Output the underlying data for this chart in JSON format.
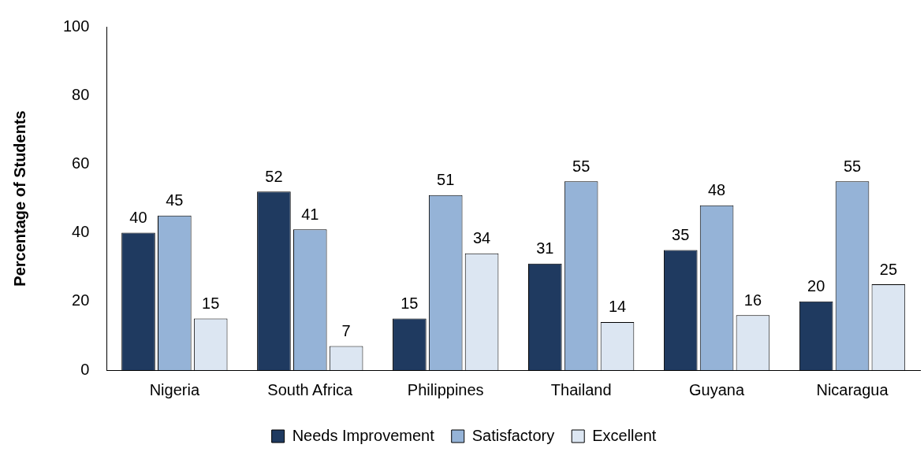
{
  "chart_data": {
    "type": "bar",
    "ylabel": "Percentage of Students",
    "categories": [
      "Nigeria",
      "South Africa",
      "Philippines",
      "Thailand",
      "Guyana",
      "Nicaragua"
    ],
    "series": [
      {
        "name": "Needs Improvement",
        "color": "#1f3a60",
        "values": [
          40,
          52,
          15,
          31,
          35,
          20
        ]
      },
      {
        "name": "Satisfactory",
        "color": "#95b3d7",
        "values": [
          45,
          41,
          51,
          55,
          48,
          55
        ]
      },
      {
        "name": "Excellent",
        "color": "#dce6f2",
        "values": [
          15,
          7,
          34,
          14,
          16,
          25
        ]
      }
    ],
    "ylim": [
      0,
      100
    ],
    "yticks": [
      0,
      20,
      40,
      60,
      80,
      100
    ],
    "grid": false,
    "legend": "bottom",
    "data_labels": true
  }
}
